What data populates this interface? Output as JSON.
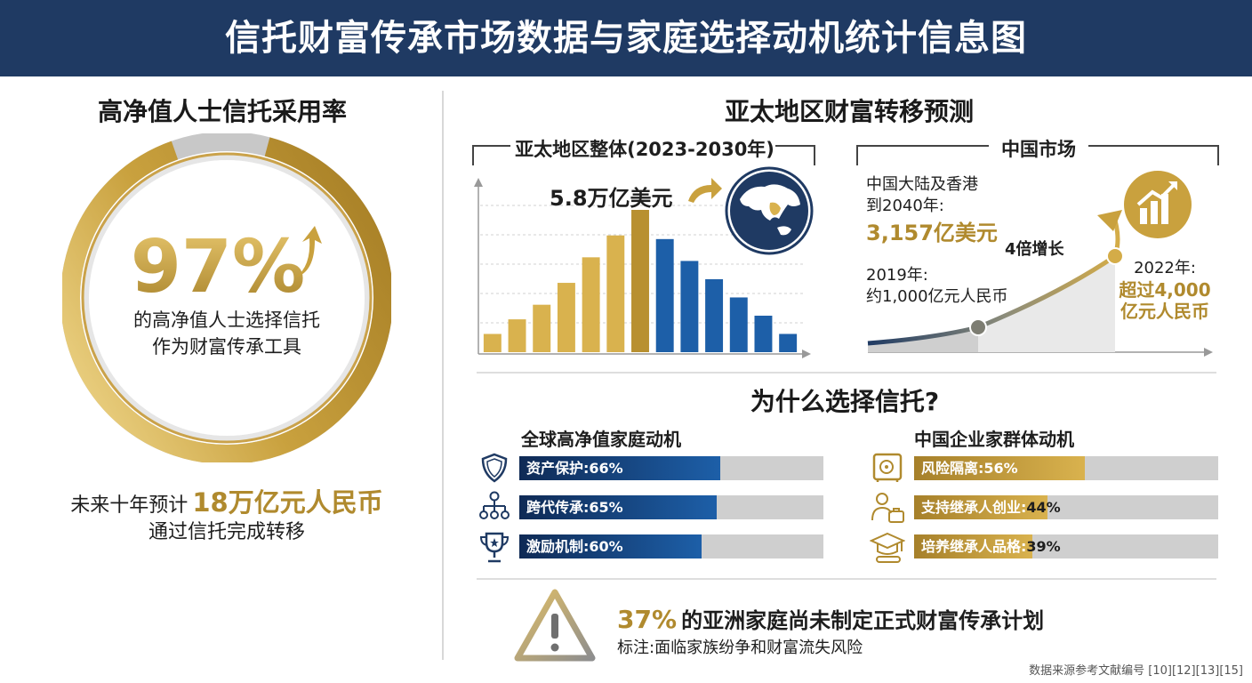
{
  "header": {
    "title": "信托财富传承市场数据与家庭选择动机统计信息图"
  },
  "left": {
    "title": "高净值人士信托采用率",
    "big_percent": "97%",
    "ring_fraction": 0.97,
    "desc_line1": "的高净值人士选择信托",
    "desc_line2": "作为财富传承工具",
    "forecast_prefix": "未来十年预计",
    "forecast_amount": "18万亿元人民币",
    "forecast_line2": "通过信托完成转移"
  },
  "apac": {
    "title": "亚太地区财富转移预测",
    "regional_label": "亚太地区整体(2023-2030年)",
    "regional_amount": "5.8万亿美元",
    "china_label": "中国市场",
    "china_2040_line1": "中国大陆及香港",
    "china_2040_line2": "到2040年:",
    "china_2040_value": "3,157亿美元",
    "growth_label": "4倍增长",
    "y2019_line1": "2019年:",
    "y2019_line2": "约1,000亿元人民币",
    "y2022_line1": "2022年:",
    "y2022_line2": "超过4,000",
    "y2022_line3": "亿元人民币"
  },
  "chart_data": [
    {
      "type": "bar",
      "values": [
        10,
        18,
        26,
        38,
        52,
        64,
        78,
        62,
        50,
        40,
        30,
        20,
        10
      ],
      "highlight_index": 6,
      "colors": {
        "rising": "#d9b24e",
        "peak": "#b89030",
        "falling": "#1d5fa8"
      }
    },
    {
      "type": "area",
      "values": [
        1000,
        4000
      ]
    },
    {
      "type": "bar",
      "title": "全球高净值家庭动机",
      "categories": [
        "资产保护",
        "跨代传承",
        "激励机制"
      ],
      "values": [
        66,
        65,
        60
      ],
      "color": "#1d5fa8"
    },
    {
      "type": "bar",
      "title": "中国企业家群体动机",
      "categories": [
        "风险隔离",
        "支持继承人创业",
        "培养继承人品格"
      ],
      "values": [
        56,
        44,
        39
      ],
      "color": "#c9a13e"
    }
  ],
  "why": {
    "title": "为什么选择信托?",
    "global_title": "全球高净值家庭动机",
    "china_title": "中国企业家群体动机",
    "global_items": [
      {
        "label": "资产保护:66%",
        "icon": "shield-icon"
      },
      {
        "label": "跨代传承:65%",
        "icon": "family-tree-icon"
      },
      {
        "label": "激励机制:60%",
        "icon": "trophy-icon"
      }
    ],
    "china_items": [
      {
        "label": "风险隔离:56%",
        "icon": "safe-icon"
      },
      {
        "label": "支持继承人创业:44%",
        "icon": "entrepreneur-icon"
      },
      {
        "label": "培养继承人品格:39%",
        "icon": "graduation-icon"
      }
    ]
  },
  "warning": {
    "percent": "37%",
    "headline": "的亚洲家庭尚未制定正式财富传承计划",
    "note": "标注:面临家族纷争和财富流失风险"
  },
  "footer": {
    "source": "数据来源参考文献编号 [10][12][13][15]"
  }
}
